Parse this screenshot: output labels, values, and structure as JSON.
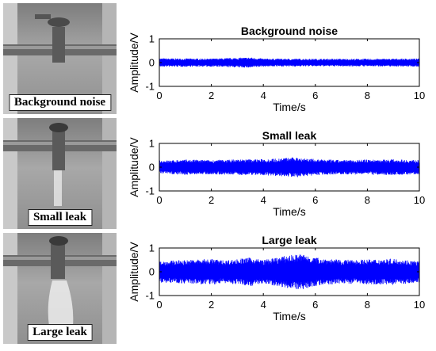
{
  "photos": [
    {
      "label": "Background noise",
      "water": "none"
    },
    {
      "label": "Small leak",
      "water": "stream"
    },
    {
      "label": "Large leak",
      "water": "spray"
    }
  ],
  "chart_data": [
    {
      "type": "line",
      "title": "Background noise",
      "xlabel": "Time/s",
      "ylabel": "Amplitude/V",
      "xlim": [
        0,
        10
      ],
      "ylim": [
        -1,
        1
      ],
      "xticks": [
        "0",
        "2",
        "4",
        "6",
        "8",
        "10"
      ],
      "yticks": [
        "1",
        "0",
        "-1"
      ],
      "series": [
        {
          "color": "#0000ff",
          "envelope": {
            "x": [
              0,
              2,
              3.5,
              4,
              6,
              8,
              10
            ],
            "amp": [
              0.18,
              0.17,
              0.22,
              0.17,
              0.16,
              0.16,
              0.17
            ]
          }
        }
      ]
    },
    {
      "type": "line",
      "title": "Small leak",
      "xlabel": "Time/s",
      "ylabel": "Amplitude/V",
      "xlim": [
        0,
        10
      ],
      "ylim": [
        -1,
        1
      ],
      "xticks": [
        "0",
        "2",
        "4",
        "6",
        "8",
        "10"
      ],
      "yticks": [
        "1",
        "0",
        "-1"
      ],
      "series": [
        {
          "color": "#0000ff",
          "envelope": {
            "x": [
              0,
              1,
              2,
              3,
              4,
              5.3,
              6,
              7,
              8,
              9,
              10
            ],
            "amp": [
              0.28,
              0.32,
              0.3,
              0.33,
              0.34,
              0.42,
              0.34,
              0.3,
              0.32,
              0.33,
              0.3
            ]
          }
        }
      ]
    },
    {
      "type": "line",
      "title": "Large leak",
      "xlabel": "Time/s",
      "ylabel": "Amplitude/V",
      "xlim": [
        0,
        10
      ],
      "ylim": [
        -1,
        1
      ],
      "xticks": [
        "0",
        "2",
        "4",
        "6",
        "8",
        "10"
      ],
      "yticks": [
        "1",
        "0",
        "-1"
      ],
      "series": [
        {
          "color": "#0000ff",
          "envelope": {
            "x": [
              0,
              1,
              2,
              2.5,
              3.5,
              4,
              5,
              5.5,
              6,
              7,
              8,
              9,
              10
            ],
            "amp": [
              0.45,
              0.5,
              0.55,
              0.48,
              0.6,
              0.5,
              0.7,
              0.75,
              0.6,
              0.5,
              0.52,
              0.55,
              0.45
            ]
          }
        }
      ]
    }
  ]
}
